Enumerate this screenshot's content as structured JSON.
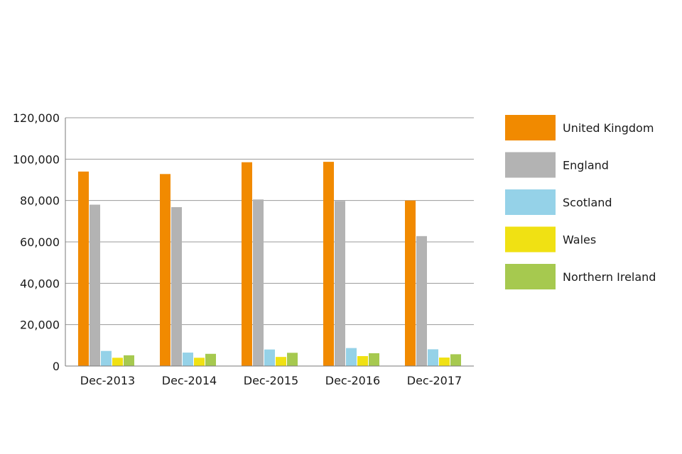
{
  "chart_data": {
    "type": "bar",
    "categories": [
      "Dec-2013",
      "Dec-2014",
      "Dec-2015",
      "Dec-2016",
      "Dec-2017"
    ],
    "series": [
      {
        "name": "United Kingdom",
        "color": "#f18a00",
        "values": [
          94000,
          92800,
          98500,
          98700,
          80000
        ]
      },
      {
        "name": "England",
        "color": "#b3b3b3",
        "values": [
          78000,
          76800,
          80500,
          79800,
          62800
        ]
      },
      {
        "name": "Scotland",
        "color": "#95d2e8",
        "values": [
          7300,
          6500,
          8000,
          8700,
          8100
        ]
      },
      {
        "name": "Wales",
        "color": "#f0e113",
        "values": [
          4000,
          4000,
          4400,
          4800,
          4100
        ]
      },
      {
        "name": "Northern Ireland",
        "color": "#a6c94f",
        "values": [
          5200,
          5900,
          6400,
          6200,
          5700
        ]
      }
    ],
    "ylim": [
      0,
      120000
    ],
    "yticks": [
      0,
      20000,
      40000,
      60000,
      80000,
      100000,
      120000
    ],
    "ytick_labels": [
      "0",
      "20,000",
      "40,000",
      "60,000",
      "80,000",
      "100,000",
      "120,000"
    ],
    "grid": true,
    "legend": "right"
  }
}
